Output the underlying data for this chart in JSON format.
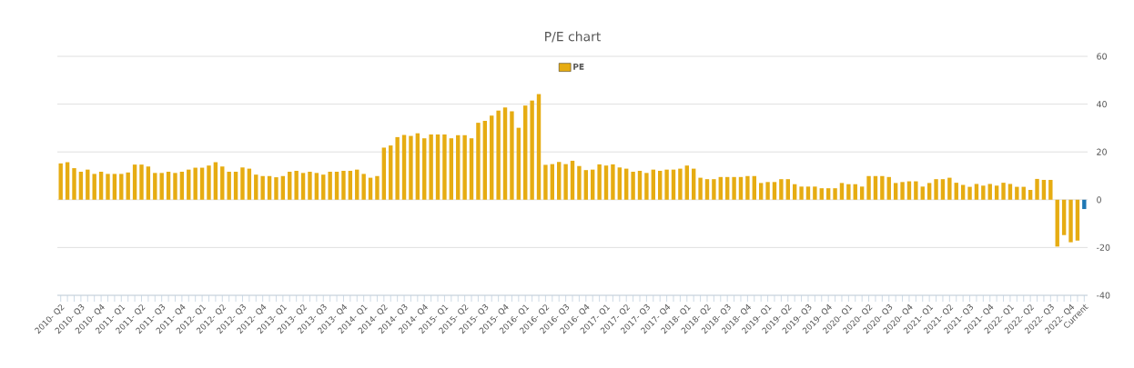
{
  "chart_data": {
    "type": "bar",
    "title": "P/E chart",
    "categories": [
      "2010- Q2",
      null,
      null,
      "2010- Q3",
      null,
      null,
      "2010- Q4",
      null,
      null,
      "2011- Q1",
      null,
      null,
      "2011- Q2",
      null,
      null,
      "2011- Q3",
      null,
      null,
      "2011- Q4",
      null,
      null,
      "2012- Q1",
      null,
      null,
      "2012- Q2",
      null,
      null,
      "2012- Q3",
      null,
      null,
      "2012- Q4",
      null,
      null,
      "2013- Q1",
      null,
      null,
      "2013- Q2",
      null,
      null,
      "2013- Q3",
      null,
      null,
      "2013- Q4",
      null,
      null,
      "2014- Q1",
      null,
      null,
      "2014- Q2",
      null,
      null,
      "2014- Q3",
      null,
      null,
      "2014- Q4",
      null,
      null,
      "2015- Q1",
      null,
      null,
      "2015- Q2",
      null,
      null,
      "2015- Q3",
      null,
      null,
      "2015- Q4",
      null,
      null,
      "2016- Q1",
      null,
      null,
      "2016- Q2",
      null,
      null,
      "2016- Q3",
      null,
      null,
      "2016- Q4",
      null,
      null,
      "2017- Q1",
      null,
      null,
      "2017- Q2",
      null,
      null,
      "2017- Q3",
      null,
      null,
      "2017- Q4",
      null,
      null,
      "2018- Q1",
      null,
      null,
      "2018- Q2",
      null,
      null,
      "2018- Q3",
      null,
      null,
      "2018- Q4",
      null,
      null,
      "2019- Q1",
      null,
      null,
      "2019- Q2",
      null,
      null,
      "2019- Q3",
      null,
      null,
      "2019- Q4",
      null,
      null,
      "2020- Q1",
      null,
      null,
      "2020- Q2",
      null,
      null,
      "2020- Q3",
      null,
      null,
      "2020- Q4",
      null,
      null,
      "2021- Q1",
      null,
      null,
      "2021- Q2",
      null,
      null,
      "2021- Q3",
      null,
      null,
      "2021- Q4",
      null,
      null,
      "2022- Q1",
      null,
      null,
      "2022- Q2",
      null,
      null,
      "2022- Q3",
      null,
      null,
      "2022- Q4",
      null,
      "Current"
    ],
    "series": [
      {
        "name": "PE",
        "color": "#e6ac12",
        "values": [
          15.2,
          15.7,
          13.2,
          11.7,
          12.6,
          10.8,
          11.7,
          10.8,
          10.8,
          10.8,
          11.4,
          14.7,
          14.7,
          13.9,
          11.2,
          11.2,
          11.7,
          11.2,
          11.7,
          12.6,
          13.4,
          13.4,
          14.3,
          15.7,
          13.9,
          11.7,
          11.7,
          13.5,
          13.0,
          10.5,
          9.9,
          9.9,
          9.4,
          9.9,
          11.7,
          12.1,
          11.2,
          11.7,
          11.2,
          10.5,
          11.7,
          11.7,
          12.1,
          12.1,
          12.6,
          10.8,
          9.2,
          9.9,
          21.8,
          22.7,
          26.2,
          27.1,
          26.7,
          27.8,
          25.7,
          27.3,
          27.3,
          27.3,
          25.7,
          27.0,
          27.0,
          25.7,
          32.2,
          33.0,
          35.2,
          37.3,
          38.6,
          37.0,
          30.1,
          39.4,
          41.5,
          44.2,
          14.6,
          14.9,
          15.8,
          14.9,
          16.3,
          14.1,
          12.4,
          12.6,
          14.8,
          14.3,
          14.8,
          13.5,
          13.0,
          11.7,
          12.1,
          11.2,
          12.6,
          12.1,
          12.6,
          12.6,
          13.0,
          14.3,
          13.0,
          9.2,
          8.6,
          8.6,
          9.5,
          9.5,
          9.5,
          9.5,
          9.9,
          9.9,
          7.0,
          7.4,
          7.4,
          8.6,
          8.6,
          6.5,
          5.5,
          5.5,
          5.5,
          4.8,
          4.8,
          4.8,
          7.0,
          6.5,
          6.5,
          5.5,
          9.9,
          9.9,
          9.9,
          9.5,
          7.0,
          7.4,
          7.7,
          7.7,
          5.5,
          7.0,
          8.6,
          8.6,
          9.2,
          7.1,
          6.2,
          5.4,
          6.6,
          5.9,
          6.6,
          5.9,
          7.1,
          6.6,
          5.4,
          5.4,
          4.1,
          8.7,
          8.3,
          8.3,
          -19.6,
          -14.8,
          -17.8,
          -17.1,
          -3.9
        ],
        "colors": [
          "#e6ac12",
          "#e6ac12",
          "#e6ac12",
          "#e6ac12",
          "#e6ac12",
          "#e6ac12",
          "#e6ac12",
          "#e6ac12",
          "#e6ac12",
          "#e6ac12",
          "#e6ac12",
          "#e6ac12",
          "#e6ac12",
          "#e6ac12",
          "#e6ac12",
          "#e6ac12",
          "#e6ac12",
          "#e6ac12",
          "#e6ac12",
          "#e6ac12",
          "#e6ac12",
          "#e6ac12",
          "#e6ac12",
          "#e6ac12",
          "#e6ac12",
          "#e6ac12",
          "#e6ac12",
          "#e6ac12",
          "#e6ac12",
          "#e6ac12",
          "#e6ac12",
          "#e6ac12",
          "#e6ac12",
          "#e6ac12",
          "#e6ac12",
          "#e6ac12",
          "#e6ac12",
          "#e6ac12",
          "#e6ac12",
          "#e6ac12",
          "#e6ac12",
          "#e6ac12",
          "#e6ac12",
          "#e6ac12",
          "#e6ac12",
          "#e6ac12",
          "#e6ac12",
          "#e6ac12",
          "#e6ac12",
          "#e6ac12",
          "#e6ac12",
          "#e6ac12",
          "#e6ac12",
          "#e6ac12",
          "#e6ac12",
          "#e6ac12",
          "#e6ac12",
          "#e6ac12",
          "#e6ac12",
          "#e6ac12",
          "#e6ac12",
          "#e6ac12",
          "#e6ac12",
          "#e6ac12",
          "#e6ac12",
          "#e6ac12",
          "#e6ac12",
          "#e6ac12",
          "#e6ac12",
          "#e6ac12",
          "#e6ac12",
          "#e6ac12",
          "#e6ac12",
          "#e6ac12",
          "#e6ac12",
          "#e6ac12",
          "#e6ac12",
          "#e6ac12",
          "#e6ac12",
          "#e6ac12",
          "#e6ac12",
          "#e6ac12",
          "#e6ac12",
          "#e6ac12",
          "#e6ac12",
          "#e6ac12",
          "#e6ac12",
          "#e6ac12",
          "#e6ac12",
          "#e6ac12",
          "#e6ac12",
          "#e6ac12",
          "#e6ac12",
          "#e6ac12",
          "#e6ac12",
          "#e6ac12",
          "#e6ac12",
          "#e6ac12",
          "#e6ac12",
          "#e6ac12",
          "#e6ac12",
          "#e6ac12",
          "#e6ac12",
          "#e6ac12",
          "#e6ac12",
          "#e6ac12",
          "#e6ac12",
          "#e6ac12",
          "#e6ac12",
          "#e6ac12",
          "#e6ac12",
          "#e6ac12",
          "#e6ac12",
          "#e6ac12",
          "#e6ac12",
          "#e6ac12",
          "#e6ac12",
          "#e6ac12",
          "#e6ac12",
          "#e6ac12",
          "#e6ac12",
          "#e6ac12",
          "#e6ac12",
          "#e6ac12",
          "#e6ac12",
          "#e6ac12",
          "#e6ac12",
          "#e6ac12",
          "#e6ac12",
          "#e6ac12",
          "#e6ac12",
          "#e6ac12",
          "#e6ac12",
          "#e6ac12",
          "#e6ac12",
          "#e6ac12",
          "#e6ac12",
          "#e6ac12",
          "#e6ac12",
          "#e6ac12",
          "#e6ac12",
          "#e6ac12",
          "#e6ac12",
          "#e6ac12",
          "#e6ac12",
          "#e6ac12",
          "#e6ac12",
          "#e6ac12",
          "#e6ac12",
          "#e6ac12",
          "#e6ac12",
          "#e6ac12",
          "#1f78b4"
        ]
      }
    ],
    "ylim": [
      -40,
      60
    ],
    "yticks": [
      -40,
      -20,
      0,
      20,
      40,
      60
    ],
    "grid": "y",
    "legend": "top"
  }
}
